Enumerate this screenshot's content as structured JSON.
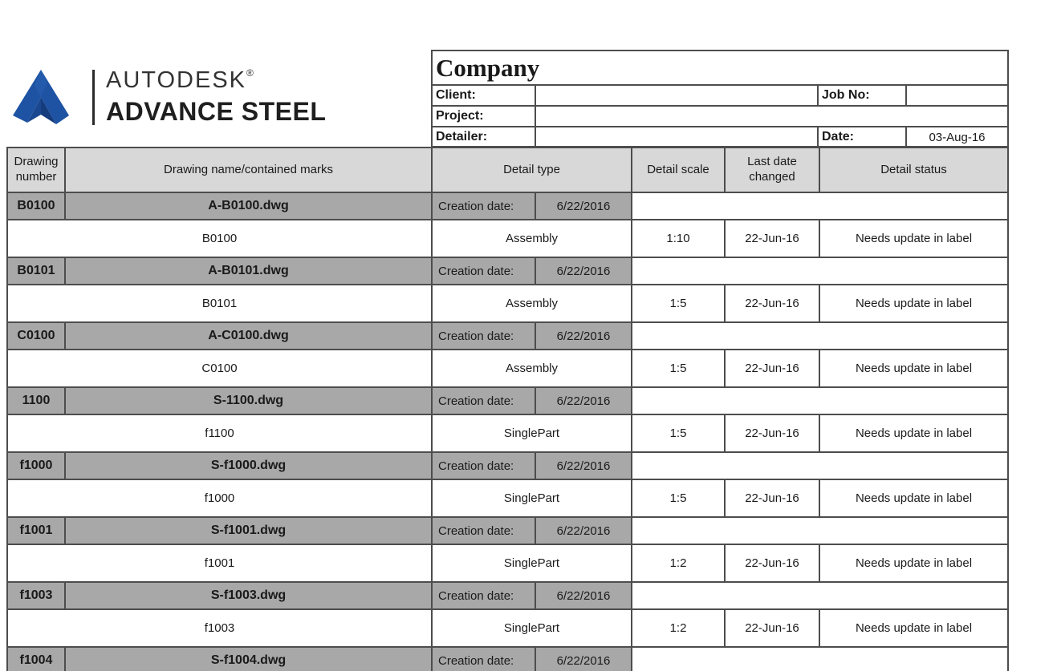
{
  "logo": {
    "brand": "AUTODESK",
    "registered": "®",
    "product": "ADVANCE STEEL"
  },
  "company_header": {
    "company": "Company",
    "client_label": "Client:",
    "client_value": "",
    "job_no_label": "Job No:",
    "job_no_value": "",
    "project_label": "Project:",
    "project_value": "",
    "detailer_label": "Detailer:",
    "detailer_value": "",
    "date_label": "Date:",
    "date_value": "03-Aug-16"
  },
  "table": {
    "headers": {
      "number": "Drawing number",
      "name": "Drawing name/contained marks",
      "type": "Detail type",
      "scale": "Detail scale",
      "changed": "Last date changed",
      "status": "Detail status"
    },
    "creation_date_label": "Creation date:",
    "groups": [
      {
        "number": "B0100",
        "file": "A-B0100.dwg",
        "creation_date": "6/22/2016",
        "mark": "B0100",
        "type": "Assembly",
        "scale": "1:10",
        "last_changed": "22-Jun-16",
        "status": "Needs update in label"
      },
      {
        "number": "B0101",
        "file": "A-B0101.dwg",
        "creation_date": "6/22/2016",
        "mark": "B0101",
        "type": "Assembly",
        "scale": "1:5",
        "last_changed": "22-Jun-16",
        "status": "Needs update in label"
      },
      {
        "number": "C0100",
        "file": "A-C0100.dwg",
        "creation_date": "6/22/2016",
        "mark": "C0100",
        "type": "Assembly",
        "scale": "1:5",
        "last_changed": "22-Jun-16",
        "status": "Needs update in label"
      },
      {
        "number": "1100",
        "file": "S-1100.dwg",
        "creation_date": "6/22/2016",
        "mark": "f1100",
        "type": "SinglePart",
        "scale": "1:5",
        "last_changed": "22-Jun-16",
        "status": "Needs update in label"
      },
      {
        "number": "f1000",
        "file": "S-f1000.dwg",
        "creation_date": "6/22/2016",
        "mark": "f1000",
        "type": "SinglePart",
        "scale": "1:5",
        "last_changed": "22-Jun-16",
        "status": "Needs update in label"
      },
      {
        "number": "f1001",
        "file": "S-f1001.dwg",
        "creation_date": "6/22/2016",
        "mark": "f1001",
        "type": "SinglePart",
        "scale": "1:2",
        "last_changed": "22-Jun-16",
        "status": "Needs update in label"
      },
      {
        "number": "f1003",
        "file": "S-f1003.dwg",
        "creation_date": "6/22/2016",
        "mark": "f1003",
        "type": "SinglePart",
        "scale": "1:2",
        "last_changed": "22-Jun-16",
        "status": "Needs update in label"
      },
      {
        "number": "f1004",
        "file": "S-f1004.dwg",
        "creation_date": "6/22/2016"
      }
    ]
  },
  "colors": {
    "header_bg": "#d8d8d8",
    "group_bg": "#a8a8a8",
    "line": "#4d4d4d",
    "logo_blue": "#1e52a3"
  }
}
